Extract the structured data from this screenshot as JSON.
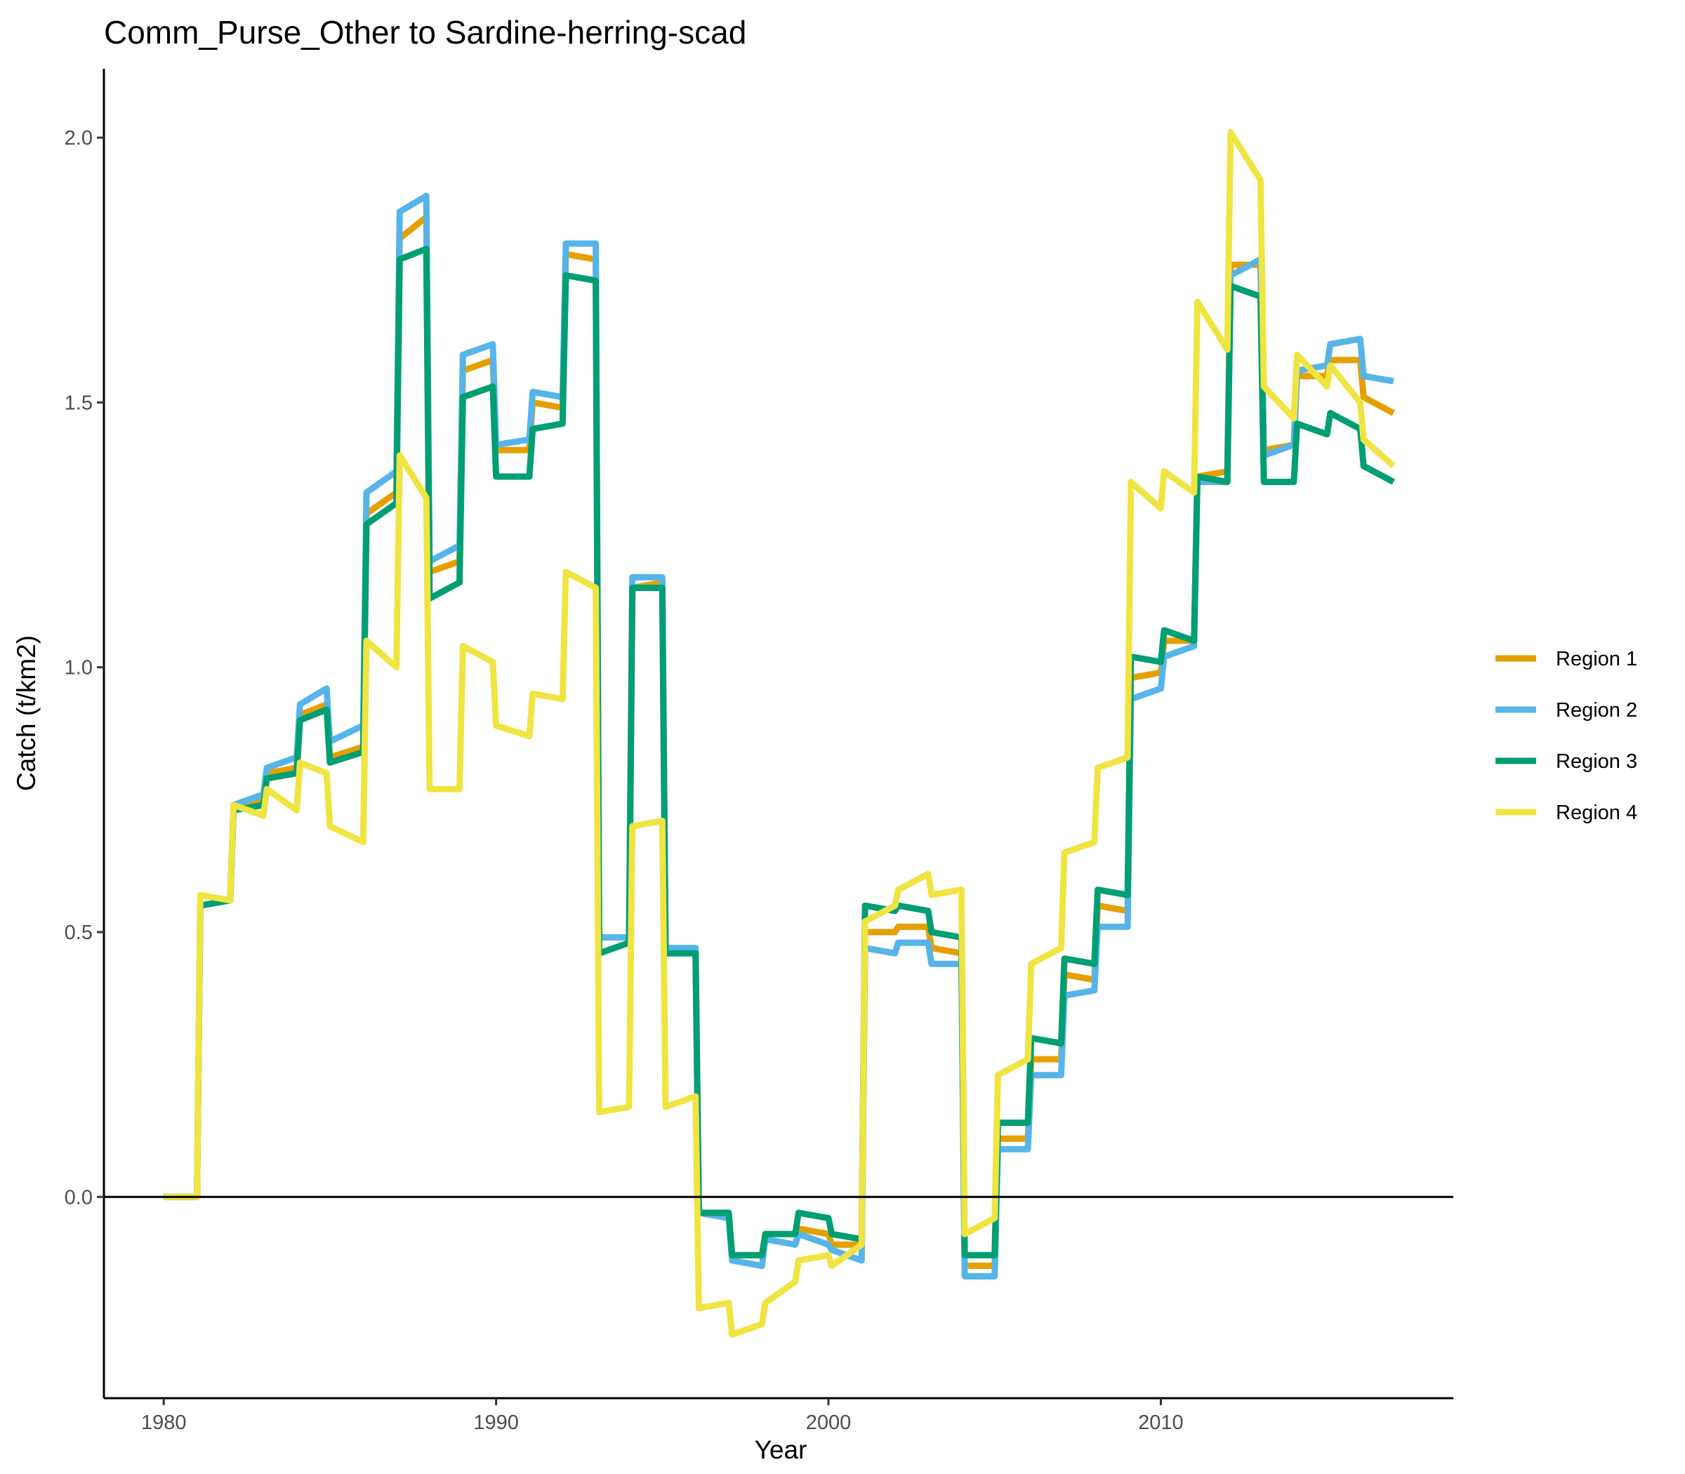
{
  "chart_data": {
    "type": "line",
    "title": "Comm_Purse_Other to Sardine-herring-scad",
    "xlabel": "Year",
    "ylabel": "Catch (t/km2)",
    "xlim": [
      1978.2,
      2018.8
    ],
    "ylim": [
      -0.38,
      2.13
    ],
    "x_ticks": [
      1980,
      1990,
      2000,
      2010
    ],
    "y_ticks": [
      0.0,
      0.5,
      1.0,
      1.5,
      2.0
    ],
    "x_tick_labels": [
      "1980",
      "1990",
      "2000",
      "2010"
    ],
    "y_tick_labels": [
      "0.0",
      "0.5",
      "1.0",
      "1.5",
      "2.0"
    ],
    "hline": 0,
    "grid": false,
    "legend": "right",
    "series": [
      {
        "name": "Region 1",
        "color": "#E69F00",
        "points": [
          [
            1980,
            0
          ],
          [
            1981,
            0
          ],
          [
            1981.1,
            0.55
          ],
          [
            1982,
            0.56
          ],
          [
            1982.1,
            0.73
          ],
          [
            1983,
            0.75
          ],
          [
            1983.1,
            0.8
          ],
          [
            1984,
            0.81
          ],
          [
            1984.1,
            0.91
          ],
          [
            1984.9,
            0.93
          ],
          [
            1985,
            0.83
          ],
          [
            1986,
            0.85
          ],
          [
            1986.1,
            1.29
          ],
          [
            1987,
            1.33
          ],
          [
            1987.1,
            1.81
          ],
          [
            1987.9,
            1.85
          ],
          [
            1988,
            1.18
          ],
          [
            1988.9,
            1.2
          ],
          [
            1989,
            1.56
          ],
          [
            1989.9,
            1.58
          ],
          [
            1990,
            1.41
          ],
          [
            1991,
            1.41
          ],
          [
            1991.1,
            1.5
          ],
          [
            1992,
            1.49
          ],
          [
            1992.1,
            1.78
          ],
          [
            1993,
            1.77
          ],
          [
            1993.1,
            0.49
          ],
          [
            1994,
            0.49
          ],
          [
            1994.1,
            1.15
          ],
          [
            1995,
            1.16
          ],
          [
            1995.1,
            0.47
          ],
          [
            1996,
            0.47
          ],
          [
            1996.1,
            -0.03
          ],
          [
            1997,
            -0.03
          ],
          [
            1997.1,
            -0.11
          ],
          [
            1998,
            -0.11
          ],
          [
            1998.1,
            -0.07
          ],
          [
            1999,
            -0.07
          ],
          [
            1999.1,
            -0.06
          ],
          [
            2000,
            -0.07
          ],
          [
            2000.1,
            -0.09
          ],
          [
            2001,
            -0.09
          ],
          [
            2001.1,
            0.5
          ],
          [
            2002,
            0.5
          ],
          [
            2002.1,
            0.51
          ],
          [
            2003,
            0.51
          ],
          [
            2003.1,
            0.47
          ],
          [
            2004,
            0.46
          ],
          [
            2004.1,
            -0.13
          ],
          [
            2005,
            -0.13
          ],
          [
            2005.1,
            0.11
          ],
          [
            2006,
            0.11
          ],
          [
            2006.1,
            0.26
          ],
          [
            2007,
            0.26
          ],
          [
            2007.1,
            0.42
          ],
          [
            2008,
            0.41
          ],
          [
            2008.1,
            0.55
          ],
          [
            2009,
            0.54
          ],
          [
            2009.1,
            0.98
          ],
          [
            2010,
            0.99
          ],
          [
            2010.1,
            1.05
          ],
          [
            2011,
            1.05
          ],
          [
            2011.1,
            1.36
          ],
          [
            2012,
            1.37
          ],
          [
            2012.1,
            1.76
          ],
          [
            2013,
            1.76
          ],
          [
            2013.1,
            1.41
          ],
          [
            2014,
            1.42
          ],
          [
            2014.1,
            1.55
          ],
          [
            2015,
            1.55
          ],
          [
            2015.1,
            1.58
          ],
          [
            2016,
            1.58
          ],
          [
            2016.1,
            1.51
          ],
          [
            2017,
            1.48
          ]
        ]
      },
      {
        "name": "Region 2",
        "color": "#56B4E9",
        "points": [
          [
            1980,
            0
          ],
          [
            1981,
            0
          ],
          [
            1981.1,
            0.55
          ],
          [
            1982,
            0.56
          ],
          [
            1982.1,
            0.74
          ],
          [
            1983,
            0.76
          ],
          [
            1983.1,
            0.81
          ],
          [
            1984,
            0.83
          ],
          [
            1984.1,
            0.93
          ],
          [
            1984.9,
            0.96
          ],
          [
            1985,
            0.86
          ],
          [
            1986,
            0.89
          ],
          [
            1986.1,
            1.33
          ],
          [
            1987,
            1.37
          ],
          [
            1987.1,
            1.86
          ],
          [
            1987.9,
            1.89
          ],
          [
            1988,
            1.2
          ],
          [
            1988.9,
            1.23
          ],
          [
            1989,
            1.59
          ],
          [
            1989.9,
            1.61
          ],
          [
            1990,
            1.42
          ],
          [
            1991,
            1.43
          ],
          [
            1991.1,
            1.52
          ],
          [
            1992,
            1.51
          ],
          [
            1992.1,
            1.8
          ],
          [
            1993,
            1.8
          ],
          [
            1993.1,
            0.49
          ],
          [
            1994,
            0.49
          ],
          [
            1994.1,
            1.17
          ],
          [
            1995,
            1.17
          ],
          [
            1995.1,
            0.47
          ],
          [
            1996,
            0.47
          ],
          [
            1996.1,
            -0.03
          ],
          [
            1997,
            -0.04
          ],
          [
            1997.1,
            -0.12
          ],
          [
            1998,
            -0.13
          ],
          [
            1998.1,
            -0.08
          ],
          [
            1999,
            -0.09
          ],
          [
            1999.1,
            -0.07
          ],
          [
            2000,
            -0.09
          ],
          [
            2000.1,
            -0.1
          ],
          [
            2001,
            -0.12
          ],
          [
            2001.1,
            0.47
          ],
          [
            2002,
            0.46
          ],
          [
            2002.1,
            0.48
          ],
          [
            2003,
            0.48
          ],
          [
            2003.1,
            0.44
          ],
          [
            2004,
            0.44
          ],
          [
            2004.1,
            -0.15
          ],
          [
            2005,
            -0.15
          ],
          [
            2005.1,
            0.09
          ],
          [
            2006,
            0.09
          ],
          [
            2006.1,
            0.23
          ],
          [
            2007,
            0.23
          ],
          [
            2007.1,
            0.38
          ],
          [
            2008,
            0.39
          ],
          [
            2008.1,
            0.51
          ],
          [
            2009,
            0.51
          ],
          [
            2009.1,
            0.94
          ],
          [
            2010,
            0.96
          ],
          [
            2010.1,
            1.02
          ],
          [
            2011,
            1.04
          ],
          [
            2011.1,
            1.35
          ],
          [
            2012,
            1.35
          ],
          [
            2012.1,
            1.74
          ],
          [
            2013,
            1.77
          ],
          [
            2013.1,
            1.4
          ],
          [
            2014,
            1.42
          ],
          [
            2014.1,
            1.56
          ],
          [
            2015,
            1.57
          ],
          [
            2015.1,
            1.61
          ],
          [
            2016,
            1.62
          ],
          [
            2016.1,
            1.55
          ],
          [
            2017,
            1.54
          ]
        ]
      },
      {
        "name": "Region 3",
        "color": "#009E73",
        "points": [
          [
            1980,
            0
          ],
          [
            1981,
            0
          ],
          [
            1981.1,
            0.55
          ],
          [
            1982,
            0.56
          ],
          [
            1982.1,
            0.73
          ],
          [
            1983,
            0.74
          ],
          [
            1983.1,
            0.79
          ],
          [
            1984,
            0.8
          ],
          [
            1984.1,
            0.9
          ],
          [
            1984.9,
            0.92
          ],
          [
            1985,
            0.82
          ],
          [
            1986,
            0.84
          ],
          [
            1986.1,
            1.27
          ],
          [
            1987,
            1.31
          ],
          [
            1987.1,
            1.77
          ],
          [
            1987.9,
            1.79
          ],
          [
            1988,
            1.13
          ],
          [
            1988.9,
            1.16
          ],
          [
            1989,
            1.51
          ],
          [
            1989.9,
            1.53
          ],
          [
            1990,
            1.36
          ],
          [
            1991,
            1.36
          ],
          [
            1991.1,
            1.45
          ],
          [
            1992,
            1.46
          ],
          [
            1992.1,
            1.74
          ],
          [
            1993,
            1.73
          ],
          [
            1993.1,
            0.46
          ],
          [
            1994,
            0.48
          ],
          [
            1994.1,
            1.15
          ],
          [
            1995,
            1.15
          ],
          [
            1995.1,
            0.46
          ],
          [
            1996,
            0.46
          ],
          [
            1996.1,
            -0.03
          ],
          [
            1997,
            -0.03
          ],
          [
            1997.1,
            -0.11
          ],
          [
            1998,
            -0.11
          ],
          [
            1998.1,
            -0.07
          ],
          [
            1999,
            -0.07
          ],
          [
            1999.1,
            -0.03
          ],
          [
            2000,
            -0.04
          ],
          [
            2000.1,
            -0.07
          ],
          [
            2001,
            -0.08
          ],
          [
            2001.1,
            0.55
          ],
          [
            2002,
            0.54
          ],
          [
            2002.1,
            0.55
          ],
          [
            2003,
            0.54
          ],
          [
            2003.1,
            0.5
          ],
          [
            2004,
            0.49
          ],
          [
            2004.1,
            -0.11
          ],
          [
            2005,
            -0.11
          ],
          [
            2005.1,
            0.14
          ],
          [
            2006,
            0.14
          ],
          [
            2006.1,
            0.3
          ],
          [
            2007,
            0.29
          ],
          [
            2007.1,
            0.45
          ],
          [
            2008,
            0.44
          ],
          [
            2008.1,
            0.58
          ],
          [
            2009,
            0.57
          ],
          [
            2009.1,
            1.02
          ],
          [
            2010,
            1.01
          ],
          [
            2010.1,
            1.07
          ],
          [
            2011,
            1.05
          ],
          [
            2011.1,
            1.36
          ],
          [
            2012,
            1.35
          ],
          [
            2012.1,
            1.72
          ],
          [
            2013,
            1.7
          ],
          [
            2013.1,
            1.35
          ],
          [
            2014,
            1.35
          ],
          [
            2014.1,
            1.46
          ],
          [
            2015,
            1.44
          ],
          [
            2015.1,
            1.48
          ],
          [
            2016,
            1.45
          ],
          [
            2016.1,
            1.38
          ],
          [
            2017,
            1.35
          ]
        ]
      },
      {
        "name": "Region 4",
        "color": "#F0E442",
        "points": [
          [
            1980,
            0
          ],
          [
            1981,
            0
          ],
          [
            1981.1,
            0.57
          ],
          [
            1982,
            0.56
          ],
          [
            1982.1,
            0.74
          ],
          [
            1983,
            0.72
          ],
          [
            1983.1,
            0.77
          ],
          [
            1984,
            0.73
          ],
          [
            1984.1,
            0.82
          ],
          [
            1984.9,
            0.8
          ],
          [
            1985,
            0.7
          ],
          [
            1986,
            0.67
          ],
          [
            1986.1,
            1.05
          ],
          [
            1987,
            1.0
          ],
          [
            1987.1,
            1.4
          ],
          [
            1987.9,
            1.32
          ],
          [
            1988,
            0.77
          ],
          [
            1988.9,
            0.77
          ],
          [
            1989,
            1.04
          ],
          [
            1989.9,
            1.01
          ],
          [
            1990,
            0.89
          ],
          [
            1991,
            0.87
          ],
          [
            1991.1,
            0.95
          ],
          [
            1992,
            0.94
          ],
          [
            1992.1,
            1.18
          ],
          [
            1993,
            1.15
          ],
          [
            1993.1,
            0.16
          ],
          [
            1994,
            0.17
          ],
          [
            1994.1,
            0.7
          ],
          [
            1995,
            0.71
          ],
          [
            1995.1,
            0.17
          ],
          [
            1996,
            0.19
          ],
          [
            1996.1,
            -0.21
          ],
          [
            1997,
            -0.2
          ],
          [
            1997.1,
            -0.26
          ],
          [
            1998,
            -0.24
          ],
          [
            1998.1,
            -0.2
          ],
          [
            1999,
            -0.16
          ],
          [
            1999.1,
            -0.12
          ],
          [
            2000,
            -0.11
          ],
          [
            2000.1,
            -0.13
          ],
          [
            2001,
            -0.09
          ],
          [
            2001.1,
            0.52
          ],
          [
            2002,
            0.55
          ],
          [
            2002.1,
            0.58
          ],
          [
            2003,
            0.61
          ],
          [
            2003.1,
            0.57
          ],
          [
            2004,
            0.58
          ],
          [
            2004.1,
            -0.07
          ],
          [
            2005,
            -0.04
          ],
          [
            2005.1,
            0.23
          ],
          [
            2006,
            0.26
          ],
          [
            2006.1,
            0.44
          ],
          [
            2007,
            0.47
          ],
          [
            2007.1,
            0.65
          ],
          [
            2008,
            0.67
          ],
          [
            2008.1,
            0.81
          ],
          [
            2009,
            0.83
          ],
          [
            2009.1,
            1.35
          ],
          [
            2010,
            1.3
          ],
          [
            2010.1,
            1.37
          ],
          [
            2011,
            1.33
          ],
          [
            2011.1,
            1.69
          ],
          [
            2012,
            1.6
          ],
          [
            2012.1,
            2.01
          ],
          [
            2013,
            1.92
          ],
          [
            2013.1,
            1.53
          ],
          [
            2014,
            1.47
          ],
          [
            2014.1,
            1.59
          ],
          [
            2015,
            1.53
          ],
          [
            2015.1,
            1.57
          ],
          [
            2016,
            1.5
          ],
          [
            2016.1,
            1.43
          ],
          [
            2017,
            1.38
          ]
        ]
      }
    ]
  }
}
